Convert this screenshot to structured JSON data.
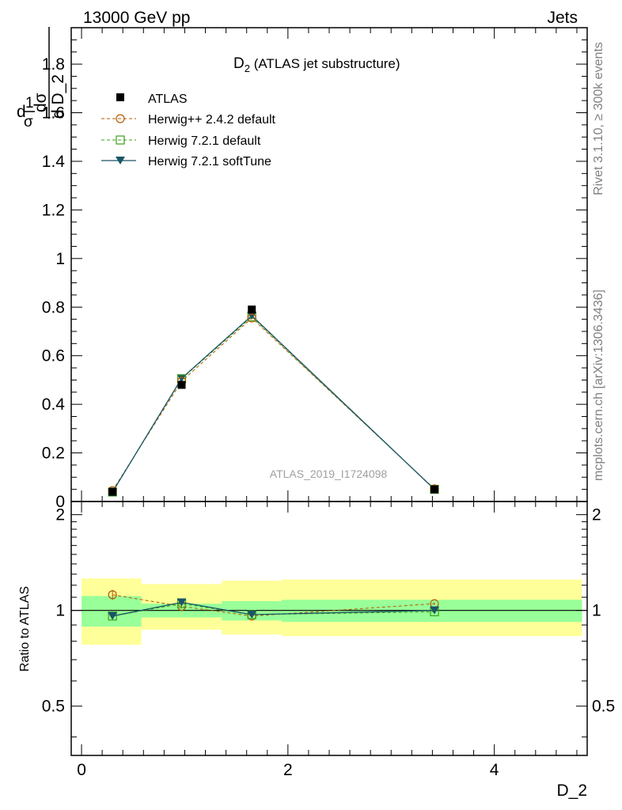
{
  "header": {
    "left_label": "13000 GeV pp",
    "right_label": "Jets"
  },
  "side_labels": {
    "rivet": "Rivet 3.1.10, ≥ 300k events",
    "mcplots": "mcplots.cern.ch [arXiv:1306.3436]"
  },
  "chart_data": {
    "type": "line",
    "title_main": "D",
    "title_sub": "2",
    "title_rest": " (ATLAS jet substructure)",
    "analysis_id": "ATLAS_2019_I1724098",
    "xlabel": "D_2",
    "ylabel": "1/σ dσ/d D_2",
    "ylabel_parts": {
      "d1": "d",
      "num1": "1",
      "den1": "σ",
      "num2": "dσ",
      "den2": "d D_2"
    },
    "ratio_ylabel": "Ratio to ATLAS",
    "xlim": [
      -0.1,
      4.9
    ],
    "ylim": [
      0,
      1.95
    ],
    "ratio_ylim": [
      0.35,
      2.2
    ],
    "x_ticks": [
      {
        "value": 0,
        "label": "0"
      },
      {
        "value": 2,
        "label": "2"
      },
      {
        "value": 4,
        "label": "4"
      }
    ],
    "y_ticks": [
      {
        "value": 0,
        "label": "0"
      },
      {
        "value": 0.2,
        "label": "0.2"
      },
      {
        "value": 0.4,
        "label": "0.4"
      },
      {
        "value": 0.6,
        "label": "0.6"
      },
      {
        "value": 0.8,
        "label": "0.8"
      },
      {
        "value": 1.0,
        "label": "1"
      },
      {
        "value": 1.2,
        "label": "1.2"
      },
      {
        "value": 1.4,
        "label": "1.4"
      },
      {
        "value": 1.6,
        "label": "1.6"
      },
      {
        "value": 1.8,
        "label": "1.8"
      }
    ],
    "ratio_y_ticks": [
      {
        "value": 0.5,
        "label": "0.5"
      },
      {
        "value": 1,
        "label": "1"
      },
      {
        "value": 2,
        "label": "2"
      }
    ],
    "bins": [
      {
        "lo": 0.0,
        "hi": 0.58
      },
      {
        "lo": 0.58,
        "hi": 1.36
      },
      {
        "lo": 1.36,
        "hi": 1.94
      },
      {
        "lo": 1.94,
        "hi": 4.85
      }
    ],
    "x": [
      0.3,
      0.97,
      1.65,
      3.42
    ],
    "series": [
      {
        "name": "ATLAS",
        "style": "data",
        "color": "#000000",
        "values": [
          0.04,
          0.48,
          0.79,
          0.05
        ]
      },
      {
        "name": "Herwig++ 2.4.2 default",
        "style": "open-circle-dashed",
        "color": "#b35900",
        "values": [
          0.045,
          0.495,
          0.755,
          0.052
        ]
      },
      {
        "name": "Herwig 7.2.1 default",
        "style": "open-square-dashed",
        "color": "#3d9e1a",
        "values": [
          0.039,
          0.505,
          0.76,
          0.05
        ]
      },
      {
        "name": "Herwig 7.2.1 softTune",
        "style": "filled-triangle-solid",
        "color": "#1a5566",
        "values": [
          0.039,
          0.507,
          0.765,
          0.05
        ]
      }
    ],
    "ratio_series": [
      {
        "name": "Herwig++ 2.4.2 default",
        "values": [
          1.12,
          1.03,
          0.96,
          1.05
        ],
        "errors": [
          0.04,
          0.01,
          0.01,
          0.01
        ]
      },
      {
        "name": "Herwig 7.2.1 default",
        "values": [
          0.96,
          1.05,
          0.97,
          0.99
        ]
      },
      {
        "name": "Herwig 7.2.1 softTune",
        "values": [
          0.96,
          1.06,
          0.97,
          1.0
        ]
      }
    ],
    "ratio_bands": {
      "inner": [
        {
          "lo": 0.89,
          "hi": 1.11
        },
        {
          "lo": 0.95,
          "hi": 1.05
        },
        {
          "lo": 0.93,
          "hi": 1.07
        },
        {
          "lo": 0.92,
          "hi": 1.08
        }
      ],
      "outer": [
        {
          "lo": 0.78,
          "hi": 1.26
        },
        {
          "lo": 0.87,
          "hi": 1.21
        },
        {
          "lo": 0.84,
          "hi": 1.24
        },
        {
          "lo": 0.83,
          "hi": 1.25
        }
      ]
    },
    "band_colors": {
      "inner": "#99ff99",
      "outer": "#ffff99"
    }
  }
}
